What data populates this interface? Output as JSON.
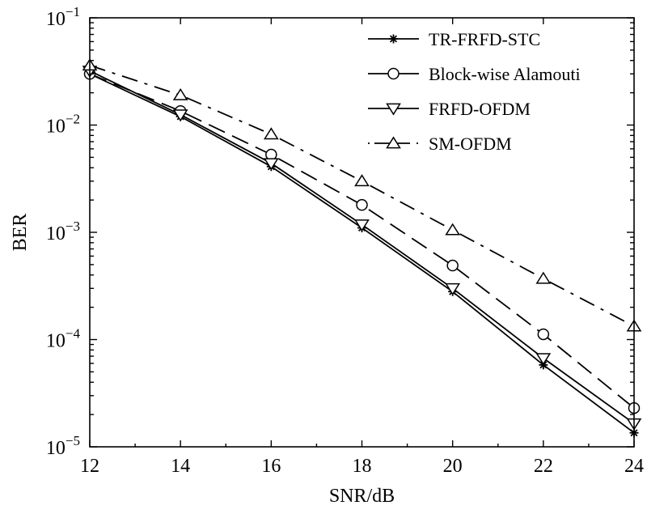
{
  "chart_data": {
    "type": "line",
    "title": "",
    "xlabel": "SNR/dB",
    "ylabel": "BER",
    "yscale": "log",
    "xlim": [
      12,
      24
    ],
    "ylim": [
      1e-05,
      0.1
    ],
    "x": [
      12,
      14,
      16,
      18,
      20,
      22,
      24
    ],
    "x_ticks": [
      {
        "value": 12,
        "label": "12"
      },
      {
        "value": 14,
        "label": "14"
      },
      {
        "value": 16,
        "label": "16"
      },
      {
        "value": 18,
        "label": "18"
      },
      {
        "value": 20,
        "label": "20"
      },
      {
        "value": 22,
        "label": "22"
      },
      {
        "value": 24,
        "label": "24"
      }
    ],
    "y_ticks": [
      {
        "value": 0.1,
        "base": "10",
        "exp": "−1"
      },
      {
        "value": 0.01,
        "base": "10",
        "exp": "−2"
      },
      {
        "value": 0.001,
        "base": "10",
        "exp": "−3"
      },
      {
        "value": 0.0001,
        "base": "10",
        "exp": "−4"
      },
      {
        "value": 1e-05,
        "base": "10",
        "exp": "−5"
      }
    ],
    "grid": false,
    "legend_position": "top-right",
    "series": [
      {
        "name": "TR-FRFD-STC",
        "marker": "star",
        "linestyle": "solid",
        "values": [
          0.03,
          0.012,
          0.0041,
          0.0011,
          0.00028,
          5.8e-05,
          1.35e-05
        ]
      },
      {
        "name": "Block-wise Alamouti",
        "marker": "circle",
        "linestyle": "longdash",
        "values": [
          0.03,
          0.0135,
          0.0053,
          0.0018,
          0.00049,
          0.000112,
          2.3e-05
        ]
      },
      {
        "name": "FRFD-OFDM",
        "marker": "triangle-down",
        "linestyle": "solid",
        "values": [
          0.032,
          0.0125,
          0.0044,
          0.00118,
          0.0003,
          6.7e-05,
          1.65e-05
        ]
      },
      {
        "name": "SM-OFDM",
        "marker": "triangle-up",
        "linestyle": "dashdot",
        "values": [
          0.036,
          0.019,
          0.0082,
          0.003,
          0.00105,
          0.00037,
          0.000133
        ]
      }
    ]
  }
}
